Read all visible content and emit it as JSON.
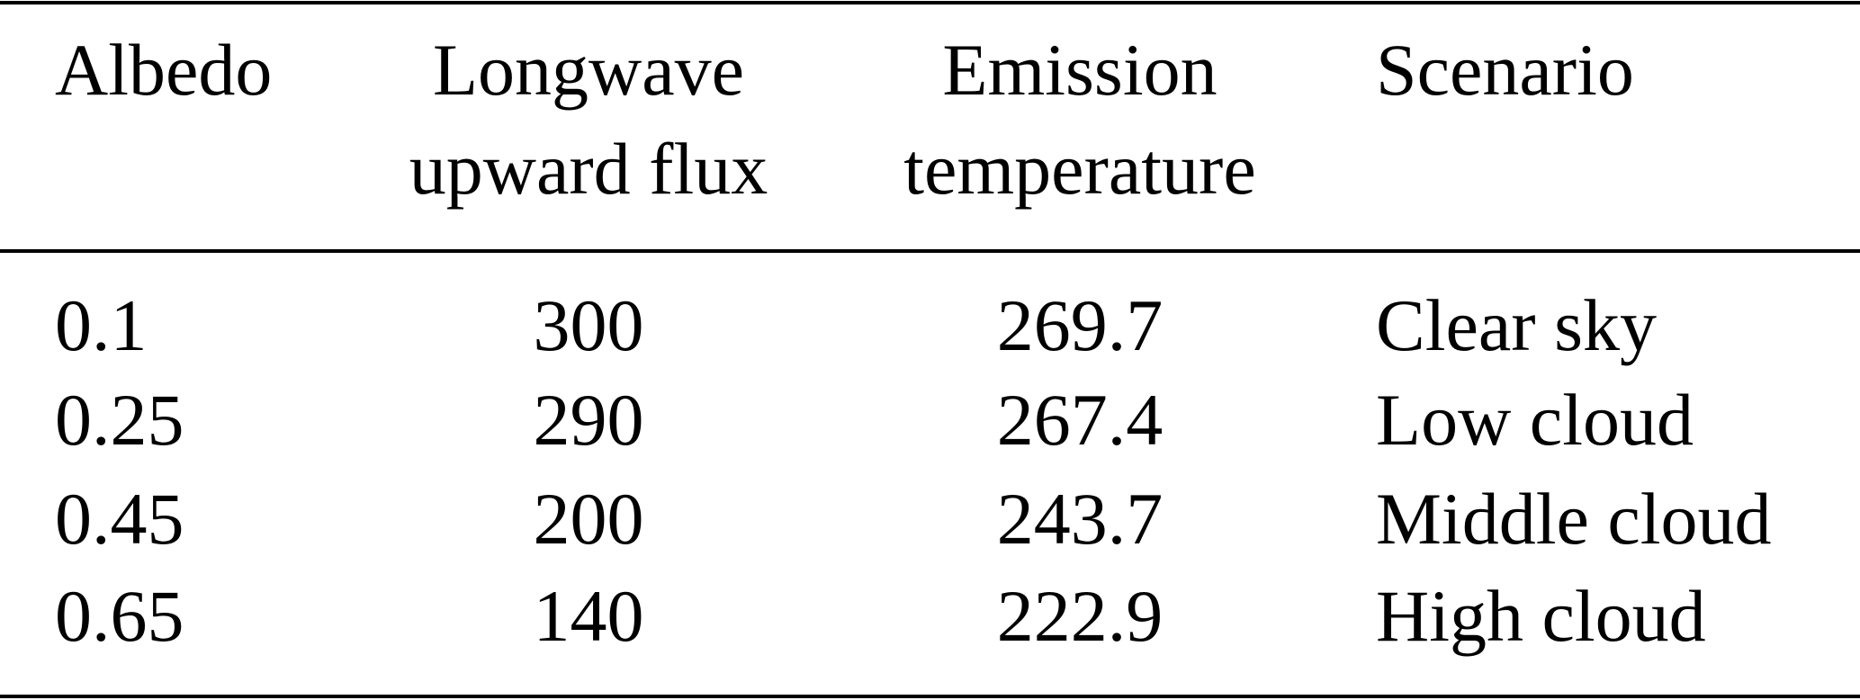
{
  "table": {
    "header": [
      [
        "Albedo"
      ],
      [
        "Longwave",
        "upward flux"
      ],
      [
        "Emission",
        "temperature"
      ],
      [
        "Scenario"
      ]
    ],
    "rows": [
      [
        "0.1",
        "300",
        "269.7",
        "Clear sky"
      ],
      [
        "0.25",
        "290",
        "267.4",
        "Low cloud"
      ],
      [
        "0.45",
        "200",
        "243.7",
        "Middle cloud"
      ],
      [
        "0.65",
        "140",
        "222.9",
        "High cloud"
      ]
    ]
  }
}
